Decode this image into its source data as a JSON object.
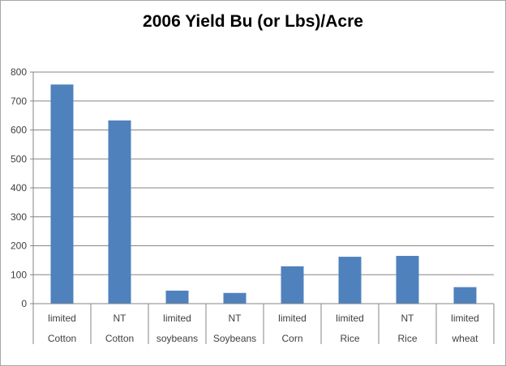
{
  "chart_data": {
    "type": "bar",
    "title": "2006 Yield Bu (or Lbs)/Acre",
    "xlabel": "",
    "ylabel": "",
    "categories": [
      [
        "limited",
        "Cotton"
      ],
      [
        "NT",
        "Cotton"
      ],
      [
        "limited",
        "soybeans"
      ],
      [
        "NT",
        "Soybeans"
      ],
      [
        "limited",
        "Corn"
      ],
      [
        "limited",
        "Rice"
      ],
      [
        "NT",
        "Rice"
      ],
      [
        "limited",
        "wheat"
      ]
    ],
    "values": [
      757,
      633,
      45,
      37,
      129,
      162,
      165,
      57
    ],
    "ylim": [
      0,
      800
    ],
    "yticks": [
      0,
      100,
      200,
      300,
      400,
      500,
      600,
      700,
      800
    ],
    "grid": true,
    "legend": "none",
    "bar_color": "#4f81bd",
    "grid_color": "#868686",
    "axis_color": "#868686"
  }
}
